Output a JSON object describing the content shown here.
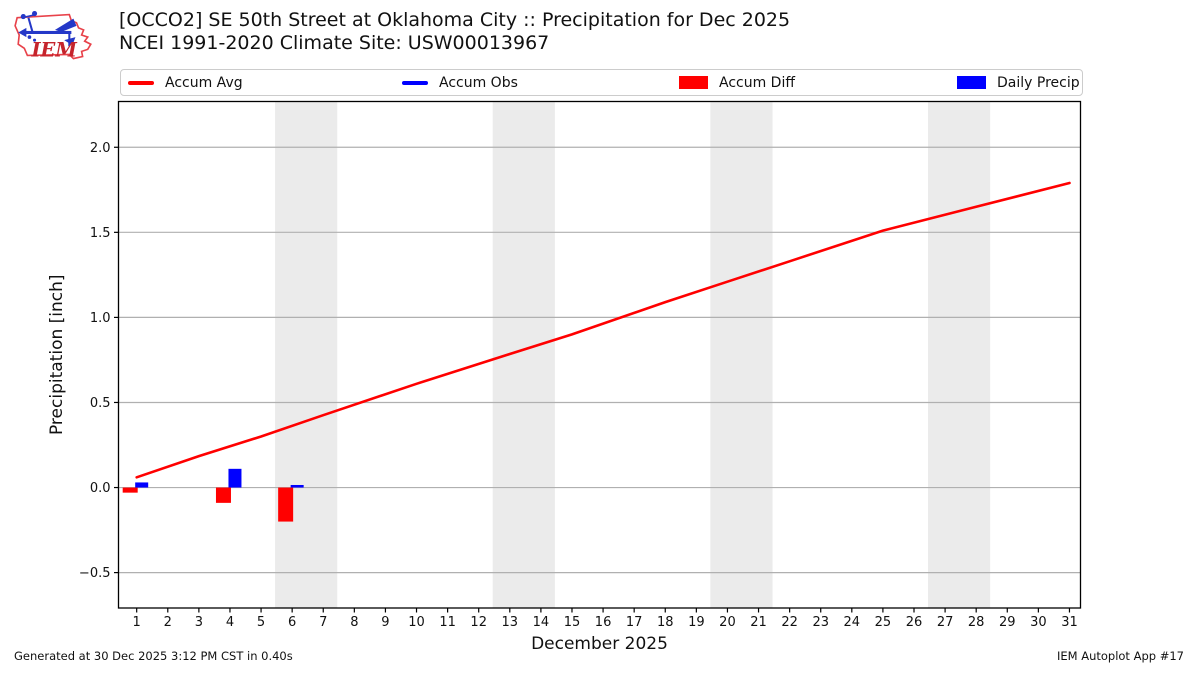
{
  "chart_data": {
    "type": "line+bar",
    "title": "[OCCO2] SE 50th Street at Oklahoma City :: Precipitation for Dec 2025",
    "subtitle": "NCEI 1991-2020 Climate Site: USW00013967",
    "xlabel": "December 2025",
    "ylabel": "Precipitation [inch]",
    "xlim": [
      0.415,
      31.355
    ],
    "ylim": [
      -0.708,
      2.269
    ],
    "x_ticks": [
      1,
      2,
      3,
      4,
      5,
      6,
      7,
      8,
      9,
      10,
      11,
      12,
      13,
      14,
      15,
      16,
      17,
      18,
      19,
      20,
      21,
      22,
      23,
      24,
      25,
      26,
      27,
      28,
      29,
      30,
      31
    ],
    "y_ticks": [
      -0.5,
      0.0,
      0.5,
      1.0,
      1.5,
      2.0
    ],
    "grid": true,
    "legend_position": "top",
    "weekend_bands_days": [
      [
        5.45,
        7.45
      ],
      [
        12.45,
        14.45
      ],
      [
        19.45,
        21.45
      ],
      [
        26.45,
        28.45
      ]
    ],
    "series": [
      {
        "name": "Accum Avg",
        "type": "line",
        "color": "#ff0000",
        "points": [
          [
            1,
            0.06
          ],
          [
            3,
            0.185
          ],
          [
            5,
            0.3
          ],
          [
            7,
            0.425
          ],
          [
            10,
            0.61
          ],
          [
            13,
            0.785
          ],
          [
            15,
            0.9
          ],
          [
            18,
            1.09
          ],
          [
            20,
            1.21
          ],
          [
            22,
            1.33
          ],
          [
            25,
            1.51
          ],
          [
            28,
            1.65
          ],
          [
            31,
            1.79
          ]
        ]
      },
      {
        "name": "Accum Obs",
        "type": "line",
        "color": "#0000ff",
        "points": []
      },
      {
        "name": "Accum Diff",
        "type": "bar",
        "color": "#ff0000",
        "points": [
          [
            1,
            -0.03
          ],
          [
            4,
            -0.09
          ],
          [
            6,
            -0.2
          ]
        ]
      },
      {
        "name": "Daily Precip",
        "type": "bar",
        "color": "#0000ff",
        "points": [
          [
            1,
            0.03
          ],
          [
            4,
            0.11
          ],
          [
            6,
            0.015
          ]
        ]
      }
    ],
    "colors": {
      "weekend_band": "#ebebeb",
      "grid": "#b0b0b0",
      "frame": "#000000"
    }
  },
  "legend": {
    "items": [
      {
        "label": "Accum Avg",
        "swatch": "line",
        "color": "#ff0000"
      },
      {
        "label": "Accum Obs",
        "swatch": "line",
        "color": "#0000ff"
      },
      {
        "label": "Accum Diff",
        "swatch": "patch",
        "color": "#ff0000"
      },
      {
        "label": "Daily Precip",
        "swatch": "patch",
        "color": "#0000ff"
      }
    ]
  },
  "logo": {
    "text": "IEM"
  },
  "footer": {
    "generated": "Generated at 30 Dec 2025 3:12 PM CST in 0.40s",
    "app": "IEM Autoplot App #17"
  }
}
